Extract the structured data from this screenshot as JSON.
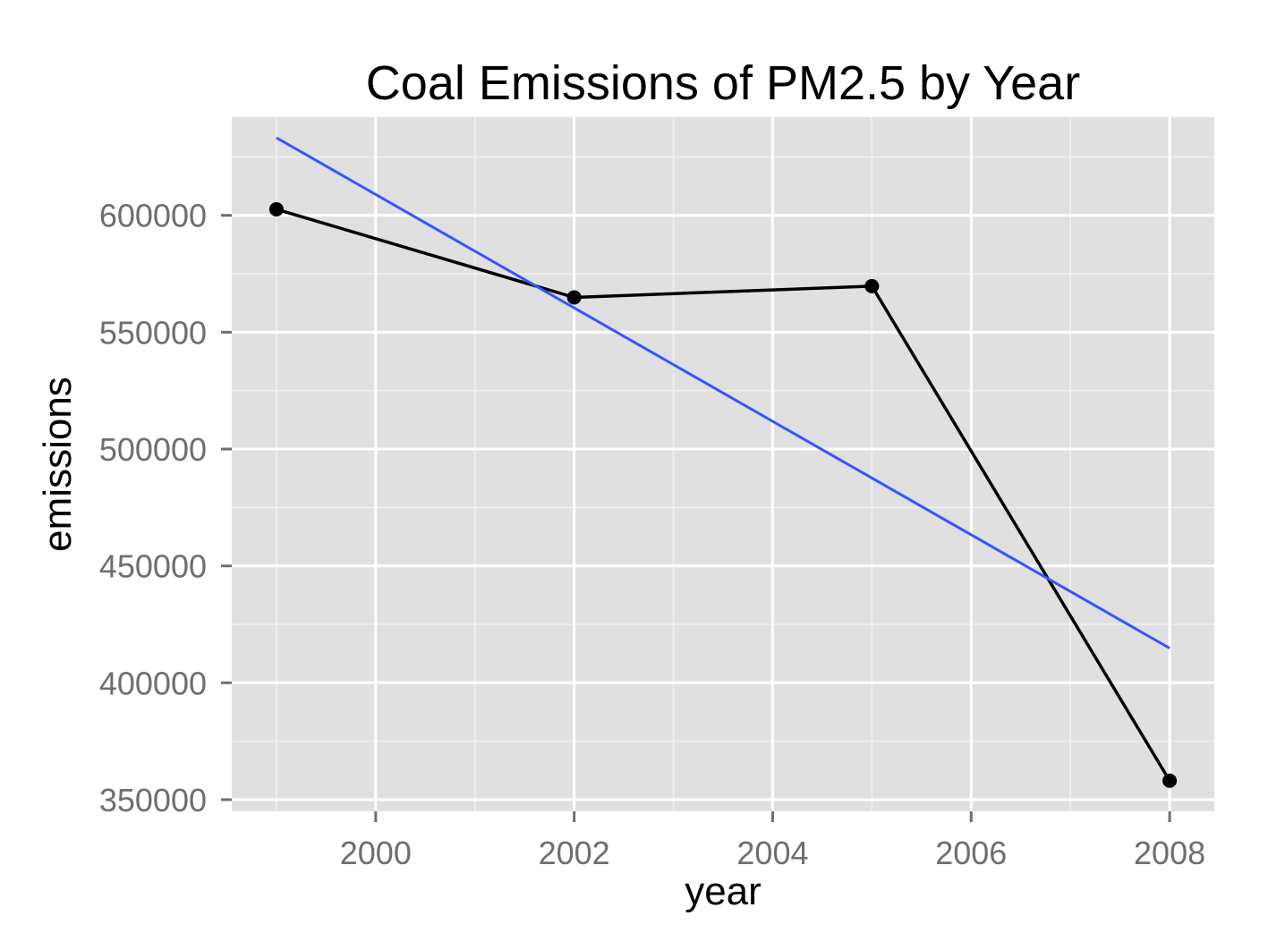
{
  "chart_data": {
    "type": "line",
    "title": "Coal Emissions of PM2.5 by Year",
    "xlabel": "year",
    "ylabel": "emissions",
    "xlim": [
      1998.55,
      2008.45
    ],
    "ylim": [
      345000,
      642000
    ],
    "x_ticks": [
      2000,
      2002,
      2004,
      2006,
      2008
    ],
    "y_ticks": [
      350000,
      400000,
      450000,
      500000,
      550000,
      600000
    ],
    "x_tick_labels": [
      "2000",
      "2002",
      "2004",
      "2006",
      "2008"
    ],
    "y_tick_labels": [
      "350000",
      "400000",
      "450000",
      "500000",
      "550000",
      "600000"
    ],
    "grid": true,
    "series": [
      {
        "style": "line+points",
        "color": "#000000",
        "x": [
          1999,
          2002,
          2005,
          2008
        ],
        "y": [
          602600,
          564900,
          569700,
          358100
        ]
      },
      {
        "style": "trend",
        "color": "#3355ff",
        "x": [
          1999,
          2008
        ],
        "y": [
          633200,
          414800
        ]
      }
    ],
    "panel_background": "#e0e0e0",
    "grid_color": "#ffffff",
    "tick_label_color": "#6e6e6e"
  }
}
